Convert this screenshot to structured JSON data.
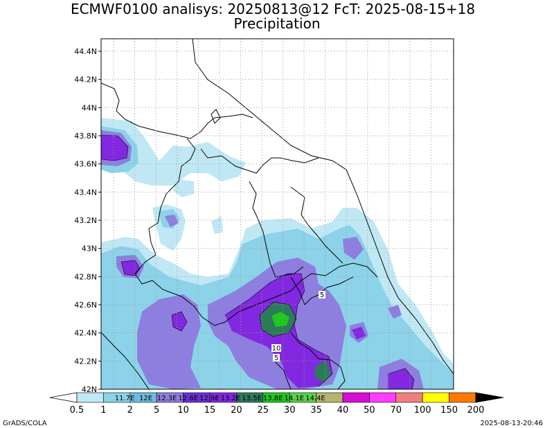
{
  "title": {
    "line1": "ECMWF0100 analisys: 20250813@12 FcT: 2025-08-15+18",
    "line2": "Precipitation"
  },
  "map": {
    "lat_labels": [
      "44.4N",
      "44.2N",
      "44N",
      "43.8N",
      "43.6N",
      "43.4N",
      "43.2N",
      "43N",
      "42.8N",
      "42.6N",
      "42.4N",
      "42.2N",
      "42N"
    ],
    "lon_labels": [
      "11.7E",
      "12E",
      "12.3E",
      "12.6E",
      "12.9E",
      "13.2E",
      "13.5E",
      "13.8E",
      "14.1E",
      "14.4E"
    ],
    "contour_labels": [
      "10",
      "5",
      "5"
    ]
  },
  "colorbar": {
    "levels": [
      "0.5",
      "1",
      "2",
      "5",
      "10",
      "15",
      "20",
      "25",
      "30",
      "35",
      "40",
      "50",
      "70",
      "100",
      "150",
      "200"
    ],
    "colors": [
      "#c0e8f4",
      "#8cd2e8",
      "#6ebcdd",
      "#8e7ee0",
      "#6c30d8",
      "#8228e0",
      "#2c7a5a",
      "#1ec81e",
      "#5ad24a",
      "#b4b46e",
      "#d20fd2",
      "#ff3cff",
      "#f08080",
      "#ffff00",
      "#ff7800",
      "#ff1e00",
      "#b40000",
      "#820000"
    ]
  },
  "footer": {
    "left": "GrADS/COLA",
    "right": "2025-08-13-20:46"
  }
}
